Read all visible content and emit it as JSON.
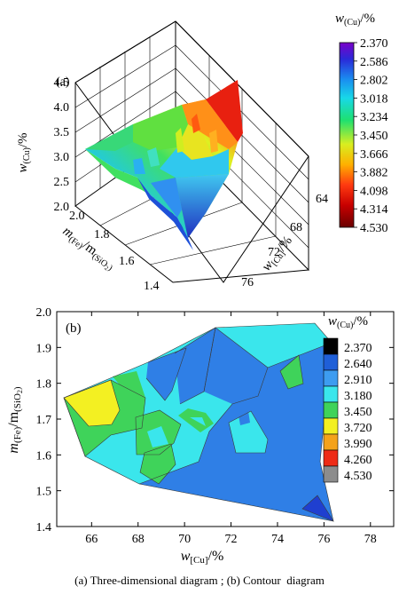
{
  "chart_data": [
    {
      "type": "surface-3d",
      "panel_label": "(a)",
      "z_axis": {
        "label_main": "w",
        "label_sub": "(Cu)",
        "label_unit": "/%",
        "ticks": [
          "2.0",
          "2.5",
          "3.0",
          "3.5",
          "4.0",
          "4.5"
        ],
        "range": [
          2.0,
          4.5
        ]
      },
      "y_axis": {
        "label_m1": "m",
        "label_sub1": "(Fe)",
        "label_mid": "/m",
        "label_sub2": "(SiO",
        "label_sub2_digit": "2",
        "label_sub2_close": ")",
        "ticks": [
          "2.0",
          "1.8",
          "1.6",
          "1.4"
        ],
        "range": [
          1.4,
          2.0
        ]
      },
      "x_axis": {
        "label_main": "w",
        "label_sub": "[Cu]",
        "label_unit": "/%",
        "ticks": [
          "64",
          "68",
          "72",
          "76"
        ],
        "range": [
          64,
          76
        ]
      },
      "colorbar": {
        "title_main": "w",
        "title_sub": "(Cu)",
        "title_unit": "/%",
        "ticks": [
          "2.370",
          "2.586",
          "2.802",
          "3.018",
          "3.234",
          "3.450",
          "3.666",
          "3.882",
          "4.098",
          "4.314",
          "4.530"
        ]
      }
    },
    {
      "type": "contour",
      "panel_label": "(b)",
      "x_axis": {
        "label_main": "w",
        "label_sub": "[Cu]",
        "label_unit": "/%",
        "ticks": [
          "66",
          "68",
          "70",
          "72",
          "74",
          "76",
          "78"
        ],
        "range": [
          64.5,
          79
        ]
      },
      "y_axis": {
        "label_m1": "m",
        "label_sub1": "(Fe)",
        "label_mid": "/m",
        "label_sub2": "(SiO",
        "label_sub2_digit": "2",
        "label_sub2_close": ")",
        "ticks": [
          "1.4",
          "1.5",
          "1.6",
          "1.7",
          "1.8",
          "1.9",
          "2.0"
        ],
        "range": [
          1.4,
          2.0
        ]
      },
      "legend": {
        "title_main": "w",
        "title_sub": "(Cu)",
        "title_unit": "/%",
        "levels": [
          {
            "value": "2.370",
            "color": "#000000"
          },
          {
            "value": "2.640",
            "color": "#1f5fd8"
          },
          {
            "value": "2.910",
            "color": "#3d9cf0"
          },
          {
            "value": "3.180",
            "color": "#3ae6ec"
          },
          {
            "value": "3.450",
            "color": "#3fd35a"
          },
          {
            "value": "3.720",
            "color": "#f3f022"
          },
          {
            "value": "3.990",
            "color": "#f4a21a"
          },
          {
            "value": "4.260",
            "color": "#ee2b16"
          },
          {
            "value": "4.530",
            "color": "#8c8c8c"
          }
        ]
      },
      "region_colors": {
        "base": "#3ae6ec",
        "mid": "#2f7fe6",
        "low": "#1f3fd0",
        "green": "#3fd35a",
        "yellow": "#f3f022"
      }
    }
  ],
  "caption": "(a) Three-dimensional diagram ; (b) Contour  diagram"
}
